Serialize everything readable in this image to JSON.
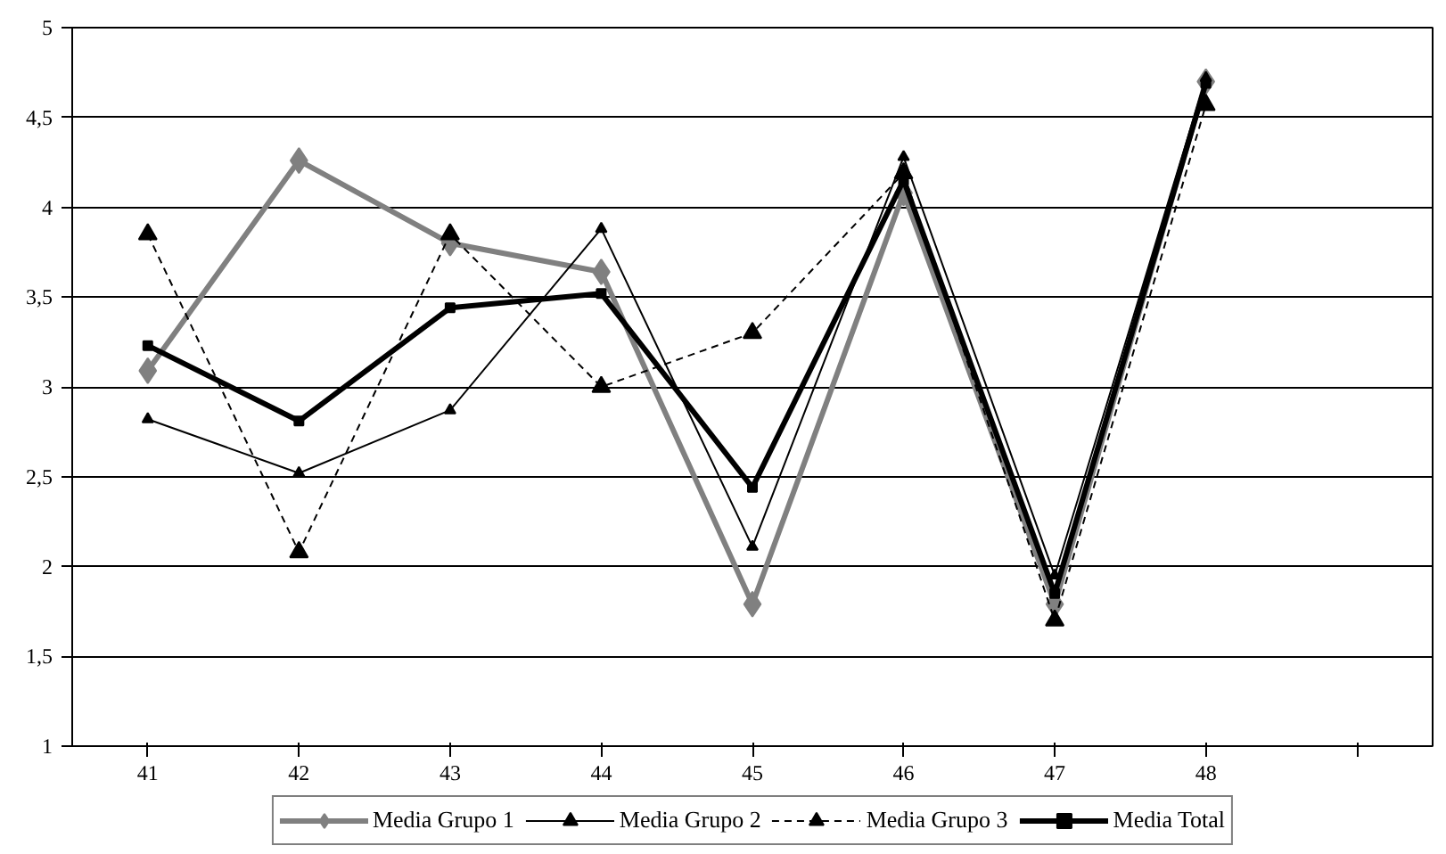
{
  "chart_data": {
    "type": "line",
    "categories": [
      "41",
      "42",
      "43",
      "44",
      "45",
      "46",
      "47",
      "48",
      null
    ],
    "ylim": [
      1,
      5
    ],
    "yticks": [
      1,
      {
        "value": 1.5,
        "label": "1,5"
      },
      2,
      {
        "value": 2.5,
        "label": "2,5"
      },
      3,
      {
        "value": 3.5,
        "label": "3,5"
      },
      4,
      {
        "value": 4.5,
        "label": "4,5"
      },
      5
    ],
    "grid": "y",
    "legend": "bottom",
    "series": [
      {
        "name": "Media Grupo 1",
        "color": "#808080",
        "marker": "diamond",
        "line_style": "solid",
        "values": [
          3.09,
          4.26,
          3.8,
          3.64,
          1.79,
          4.08,
          1.79,
          4.7,
          null
        ]
      },
      {
        "name": "Media Grupo 2",
        "color": "#000000",
        "marker": "triangle",
        "line_style": "solid",
        "values": [
          2.82,
          2.52,
          2.87,
          3.88,
          2.11,
          4.28,
          1.95,
          4.72,
          null
        ]
      },
      {
        "name": "Media Grupo 3",
        "color": "#000000",
        "marker": "triangle",
        "line_style": "dashed",
        "values": [
          3.85,
          2.08,
          3.85,
          3.0,
          3.3,
          4.19,
          1.7,
          4.57,
          null
        ]
      },
      {
        "name": "Media Total",
        "color": "#000000",
        "marker": "square",
        "line_style": "solid",
        "values": [
          3.23,
          2.81,
          3.44,
          3.52,
          2.44,
          4.15,
          1.85,
          4.69,
          null
        ]
      }
    ]
  }
}
